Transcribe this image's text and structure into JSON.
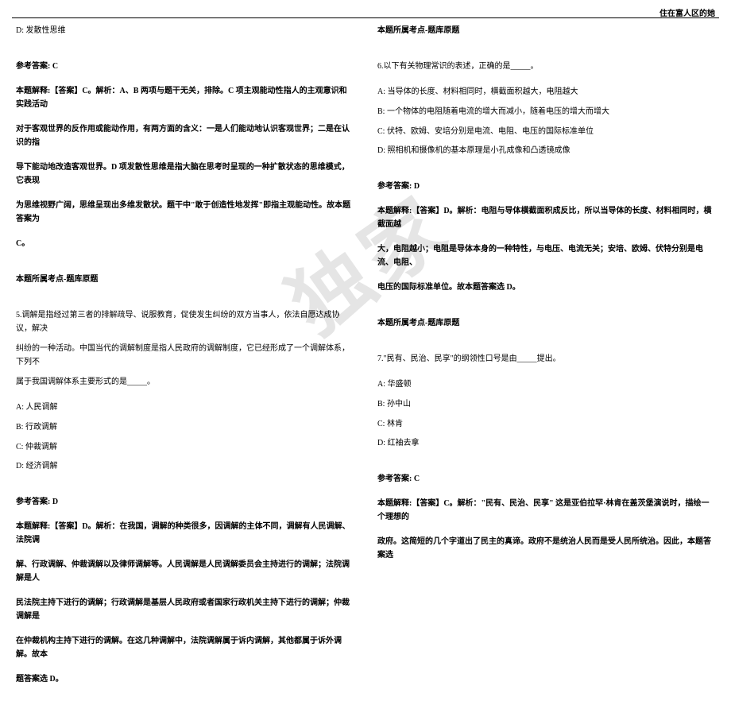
{
  "header": {
    "title": "住在富人区的她"
  },
  "watermark": "独家",
  "leftColumn": {
    "q4": {
      "optD": "D: 发散性思维",
      "answerLabel": "参考答案: C",
      "explain1": "本题解释:【答案】C。解析：A、B 两项与题干无关，排除。C 项主观能动性指人的主观意识和实践活动",
      "explain2": "对于客观世界的反作用或能动作用，有两方面的含义：一是人们能动地认识客观世界；二是在认识的指",
      "explain3": "导下能动地改造客观世界。D 项发散性思维是指大脑在思考时呈现的一种扩散状态的思维模式，它表现",
      "explain4": "为思维视野广阔，思维呈现出多维发散状。题干中\"敢于创造性地发挥\"即指主观能动性。故本题答案为",
      "explain5": "C。",
      "pointLabel": "本题所属考点-题库原题"
    },
    "q5": {
      "stem1": "5.调解是指经过第三者的排解疏导、说服教育，促使发生纠纷的双方当事人，依法自愿达成协议，解决",
      "stem2": "纠纷的一种活动。中国当代的调解制度是指人民政府的调解制度，它已经形成了一个调解体系，下列不",
      "stem3": "属于我国调解体系主要形式的是_____。",
      "optA": "A: 人民调解",
      "optB": "B: 行政调解",
      "optC": "C: 仲裁调解",
      "optD": "D: 经济调解",
      "answerLabel": "参考答案: D",
      "explain1": "本题解释:【答案】D。解析：在我国，调解的种类很多，因调解的主体不同，调解有人民调解、法院调",
      "explain2": "解、行政调解、仲裁调解以及律师调解等。人民调解是人民调解委员会主持进行的调解；法院调解是人",
      "explain3": "民法院主持下进行的调解；行政调解是基层人民政府或者国家行政机关主持下进行的调解；仲裁调解是",
      "explain4": "在仲裁机构主持下进行的调解。在这几种调解中，法院调解属于诉内调解，其他都属于诉外调解。故本",
      "explain5": "题答案选 D。"
    }
  },
  "rightColumn": {
    "q5end": {
      "pointLabel": "本题所属考点-题库原题"
    },
    "q6": {
      "stem": "6.以下有关物理常识的表述，正确的是_____。",
      "optA": "A: 当导体的长度、材料相同时，横截面积越大，电阻越大",
      "optB": "B: 一个物体的电阻随着电流的增大而减小，随着电压的增大而增大",
      "optC": "C: 伏特、欧姆、安培分别是电流、电阻、电压的国际标准单位",
      "optD": "D: 照相机和摄像机的基本原理是小孔成像和凸透镜成像",
      "answerLabel": "参考答案: D",
      "explain1": "本题解释:【答案】D。解析：电阻与导体横截面积成反比，所以当导体的长度、材料相同时，横截面越",
      "explain2": "大，电阻越小；电阻是导体本身的一种特性，与电压、电流无关；安培、欧姆、伏特分别是电流、电阻、",
      "explain3": "电压的国际标准单位。故本题答案选 D。",
      "pointLabel": "本题所属考点-题库原题"
    },
    "q7": {
      "stem": "7.\"民有、民治、民享\"的纲领性口号是由_____提出。",
      "optA": "A: 华盛顿",
      "optB": "B: 孙中山",
      "optC": "C: 林肯",
      "optD": "D: 红袖去拿",
      "answerLabel": "参考答案: C",
      "explain1": "本题解释:【答案】C。解析：\"民有、民治、民享\" 这是亚伯拉罕·林肯在盖茨堡演说时，描绘一个理想的",
      "explain2": "政府。这简短的几个字道出了民主的真谛。政府不是统治人民而是受人民所统治。因此，本题答案选"
    }
  }
}
